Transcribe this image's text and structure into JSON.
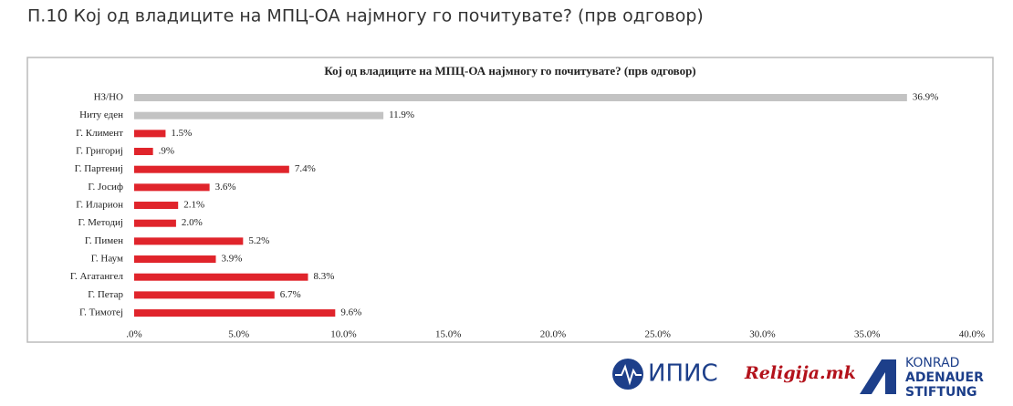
{
  "page_title": "П.10 Кој од владиците на МПЦ-ОА најмногу го почитувате? (прв одговор)",
  "chart_data": {
    "type": "barh",
    "title": "Кој од владиците на МПЦ-ОА најмногу го почитувате? (прв одговор)",
    "categories": [
      "НЗ/НО",
      "Ниту еден",
      "Г. Климент",
      "Г. Григориј",
      "Г. Партениј",
      "Г. Јосиф",
      "Г. Иларион",
      "Г. Методиј",
      "Г. Пимен",
      "Г. Наум",
      "Г. Агатангел",
      "Г. Петар",
      "Г. Тимотеј"
    ],
    "values": [
      36.9,
      11.9,
      1.5,
      0.9,
      7.4,
      3.6,
      2.1,
      2.0,
      5.2,
      3.9,
      8.3,
      6.7,
      9.6
    ],
    "value_labels": [
      "36.9%",
      "11.9%",
      "1.5%",
      ".9%",
      "7.4%",
      "3.6%",
      "2.1%",
      "2.0%",
      "5.2%",
      "3.9%",
      "8.3%",
      "6.7%",
      "9.6%"
    ],
    "colors": [
      "#c3c3c3",
      "#c3c3c3",
      "#e0242b",
      "#e0242b",
      "#e0242b",
      "#e0242b",
      "#e0242b",
      "#e0242b",
      "#e0242b",
      "#e0242b",
      "#e0242b",
      "#e0242b",
      "#e0242b"
    ],
    "xlim": [
      0,
      40
    ],
    "xticks": [
      {
        "value": 0,
        "label": ".0%"
      },
      {
        "value": 5,
        "label": "5.0%"
      },
      {
        "value": 10,
        "label": "10.0%"
      },
      {
        "value": 15,
        "label": "15.0%"
      },
      {
        "value": 20,
        "label": "20.0%"
      },
      {
        "value": 25,
        "label": "25.0%"
      },
      {
        "value": 30,
        "label": "30.0%"
      },
      {
        "value": 35,
        "label": "35.0%"
      },
      {
        "value": 40,
        "label": "40.0%"
      }
    ]
  },
  "logos": {
    "ipis": "ИПИС",
    "religija": "Religija.mk",
    "kas": [
      "KONRAD",
      "ADENAUER",
      "STIFTUNG"
    ]
  }
}
